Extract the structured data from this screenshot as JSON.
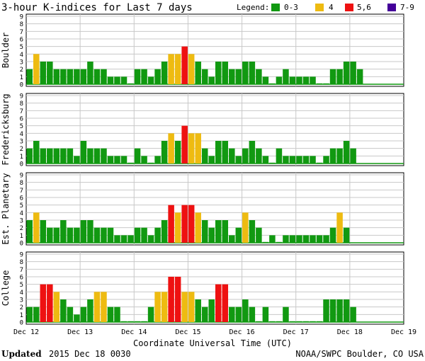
{
  "chart_data": {
    "type": "bar",
    "title": "3-hour K-indices for Last 7 days",
    "legend": {
      "label": "Legend:",
      "placement": "top-right",
      "entries": [
        {
          "label": "0-3",
          "color": "#119911"
        },
        {
          "label": "4",
          "color": "#EEBB11"
        },
        {
          "label": "5,6",
          "color": "#EE1111"
        },
        {
          "label": "7-9",
          "color": "#440099"
        }
      ]
    },
    "xlabel": "Coordinate Universal Time (UTC)",
    "x_ticks": [
      "Dec 12",
      "Dec 13",
      "Dec 14",
      "Dec 15",
      "Dec 16",
      "Dec 17",
      "Dec 18",
      "Dec 19"
    ],
    "ylim": [
      0,
      9
    ],
    "y_ticks": [
      "0",
      "1",
      "2",
      "3",
      "4",
      "5",
      "6",
      "7",
      "8",
      "9"
    ],
    "intervals_per_day": 8,
    "days": 7,
    "grid": true,
    "panels": [
      {
        "station": "Boulder",
        "values": [
          2,
          4,
          3,
          3,
          2,
          2,
          2,
          2,
          2,
          3,
          2,
          2,
          1,
          1,
          1,
          0,
          2,
          2,
          1,
          2,
          3,
          4,
          4,
          5,
          4,
          3,
          2,
          1,
          3,
          3,
          2,
          2,
          3,
          3,
          2,
          1,
          0,
          1,
          2,
          1,
          1,
          1,
          1,
          0,
          0,
          2,
          2,
          3,
          3,
          2
        ]
      },
      {
        "station": "Fredericksburg",
        "values": [
          2,
          3,
          2,
          2,
          2,
          2,
          2,
          1,
          3,
          2,
          2,
          2,
          1,
          1,
          1,
          0,
          2,
          1,
          0,
          1,
          3,
          4,
          3,
          5,
          4,
          4,
          2,
          1,
          3,
          3,
          2,
          1,
          2,
          3,
          2,
          1,
          0,
          2,
          1,
          1,
          1,
          1,
          1,
          0,
          1,
          2,
          2,
          3,
          2
        ]
      },
      {
        "station": "Est. Planetary",
        "values": [
          3,
          4,
          3,
          2,
          2,
          3,
          2,
          2,
          3,
          3,
          2,
          2,
          2,
          1,
          1,
          1,
          2,
          2,
          1,
          2,
          3,
          5,
          4,
          5,
          5,
          4,
          3,
          2,
          3,
          3,
          1,
          2,
          4,
          3,
          2,
          0,
          1,
          0,
          1,
          1,
          1,
          1,
          1,
          1,
          1,
          2,
          4,
          2
        ]
      },
      {
        "station": "College",
        "values": [
          2,
          2,
          5,
          5,
          4,
          3,
          2,
          1,
          2,
          3,
          4,
          4,
          2,
          2,
          0,
          0,
          0,
          0,
          2,
          4,
          4,
          6,
          6,
          4,
          4,
          3,
          2,
          3,
          5,
          5,
          2,
          2,
          3,
          2,
          0,
          2,
          0,
          0,
          2,
          0,
          0,
          0,
          0,
          0,
          3,
          3,
          3,
          3,
          2
        ]
      }
    ]
  },
  "footer": {
    "updated_label": "Updated",
    "updated_value": "2015 Dec 18 0030",
    "source": "NOAA/SWPC Boulder, CO USA"
  }
}
